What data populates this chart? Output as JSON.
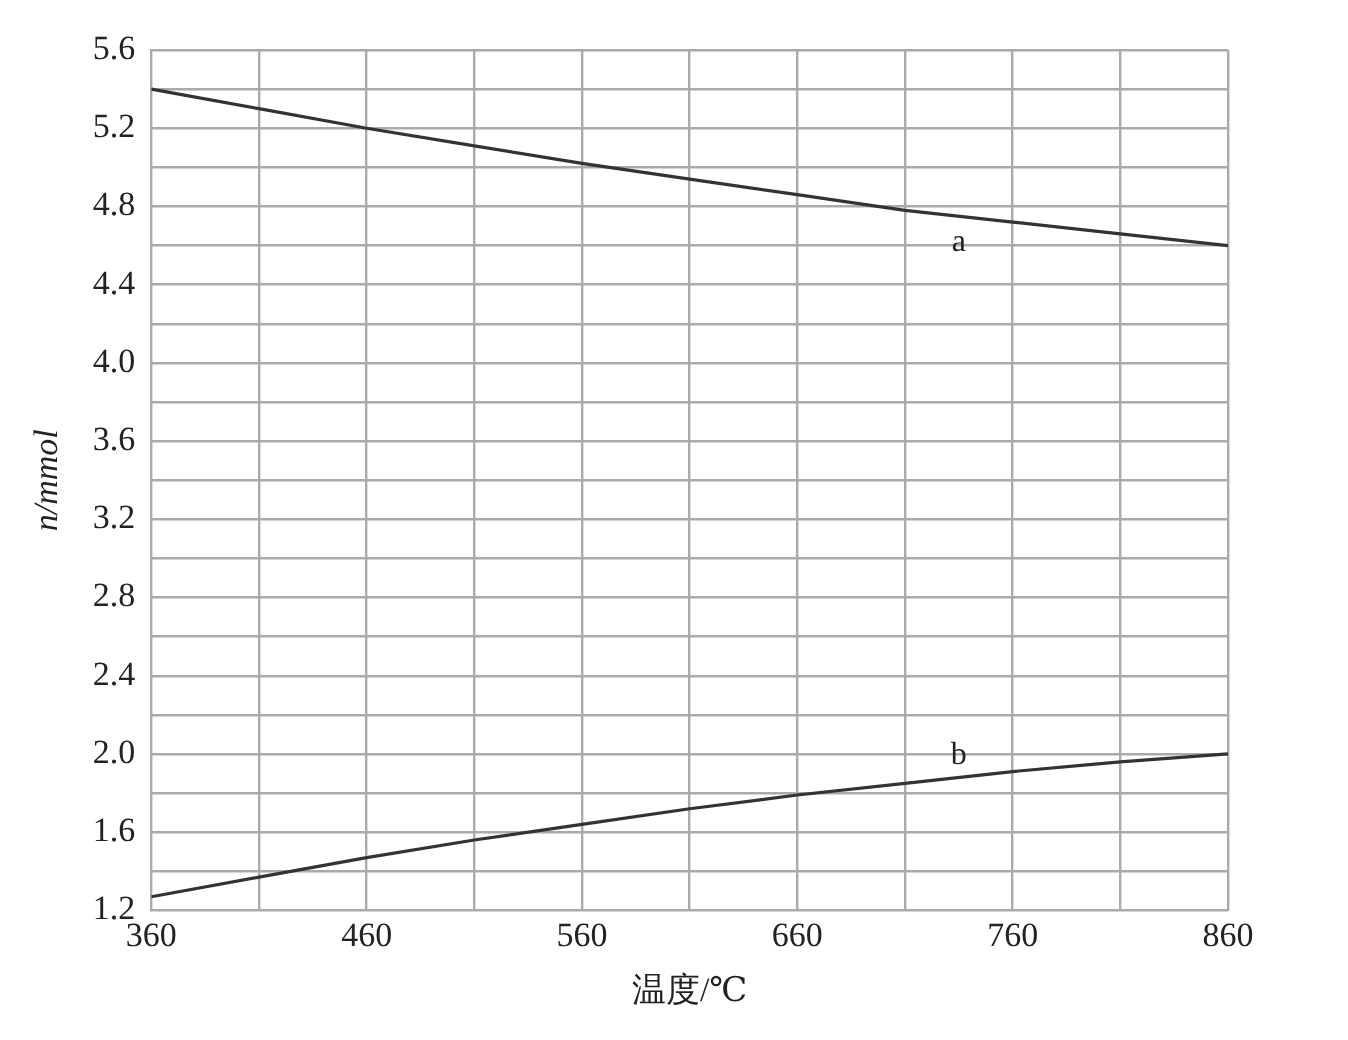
{
  "chart_data": {
    "type": "line",
    "xlabel": "温度/℃",
    "ylabel": "n/mmol",
    "x": [
      360,
      410,
      460,
      510,
      560,
      610,
      660,
      710,
      760,
      810,
      860
    ],
    "series": [
      {
        "name": "a",
        "color": "#333333",
        "values": [
          5.4,
          5.3,
          5.2,
          5.11,
          5.02,
          4.94,
          4.86,
          4.78,
          4.72,
          4.66,
          4.6
        ]
      },
      {
        "name": "b",
        "color": "#333333",
        "values": [
          1.27,
          1.37,
          1.47,
          1.56,
          1.64,
          1.72,
          1.79,
          1.85,
          1.91,
          1.96,
          2.0
        ]
      }
    ],
    "xlim": [
      360,
      860
    ],
    "xticks": [
      360,
      {
        "value": 410,
        "label": null
      },
      460,
      {
        "value": 510,
        "label": null
      },
      560,
      {
        "value": 610,
        "label": null
      },
      660,
      {
        "value": 710,
        "label": null
      },
      760,
      {
        "value": 810,
        "label": null
      },
      860
    ],
    "ylim": [
      1.2,
      5.6
    ],
    "yticks": [
      {
        "value": 1.2,
        "label": "1.2"
      },
      {
        "value": 1.4,
        "label": null
      },
      {
        "value": 1.6,
        "label": "1.6"
      },
      {
        "value": 1.8,
        "label": null
      },
      {
        "value": 2.0,
        "label": "2.0"
      },
      {
        "value": 2.2,
        "label": null
      },
      {
        "value": 2.4,
        "label": "2.4"
      },
      {
        "value": 2.6,
        "label": null
      },
      {
        "value": 2.8,
        "label": "2.8"
      },
      {
        "value": 3.0,
        "label": null
      },
      {
        "value": 3.2,
        "label": "3.2"
      },
      {
        "value": 3.4,
        "label": null
      },
      {
        "value": 3.6,
        "label": "3.6"
      },
      {
        "value": 3.8,
        "label": null
      },
      {
        "value": 4.0,
        "label": "4.0"
      },
      {
        "value": 4.2,
        "label": null
      },
      {
        "value": 4.4,
        "label": "4.4"
      },
      {
        "value": 4.6,
        "label": null
      },
      {
        "value": 4.8,
        "label": "4.8"
      },
      {
        "value": 5.0,
        "label": null
      },
      {
        "value": 5.2,
        "label": "5.2"
      },
      {
        "value": 5.4,
        "label": null
      },
      {
        "value": 5.6,
        "label": "5.6"
      }
    ],
    "grid": true,
    "marker": "none",
    "line_style": "solid"
  }
}
